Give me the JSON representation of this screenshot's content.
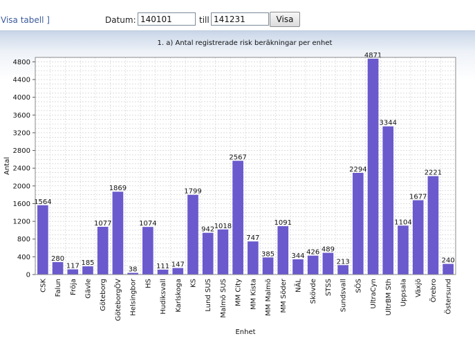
{
  "toolbar": {
    "link_label": "Visa tabell ]",
    "datum_label": "Datum:",
    "from_value": "140101",
    "till_label": "till",
    "to_value": "141231",
    "button_label": "Visa"
  },
  "chart_data": {
    "type": "bar",
    "title": "1. a) Antal registrerade risk beräkningar per enhet",
    "xlabel": "Enhet",
    "ylabel": "Antal",
    "ylim": [
      0,
      4900
    ],
    "yticks": [
      0,
      400,
      800,
      1200,
      1600,
      2000,
      2400,
      2800,
      3200,
      3600,
      4000,
      4400,
      4800
    ],
    "grid": true,
    "bar_color": "#6a5acd",
    "categories": [
      "CSK",
      "Falun",
      "Fröja",
      "Gävle",
      "Göteborg",
      "GöteborgÖV",
      "Helsingbor",
      "HS",
      "Hudiksvall",
      "Karlskoga",
      "KS",
      "Lund SUS",
      "Malmö SUS",
      "MM City",
      "MM Kista",
      "MM Malmö",
      "MM Söder",
      "NÄL",
      "Skövde",
      "STSS",
      "Sundsvall",
      "SÖS",
      "UltraCyn",
      "UltrBM Sth",
      "Uppsala",
      "Växjö",
      "Örebro",
      "Östersund"
    ],
    "values": [
      1564,
      280,
      117,
      185,
      1077,
      1869,
      38,
      1074,
      111,
      147,
      1799,
      942,
      1018,
      2567,
      747,
      385,
      1091,
      344,
      426,
      489,
      213,
      2294,
      4871,
      3344,
      1104,
      1677,
      2221,
      240
    ]
  }
}
